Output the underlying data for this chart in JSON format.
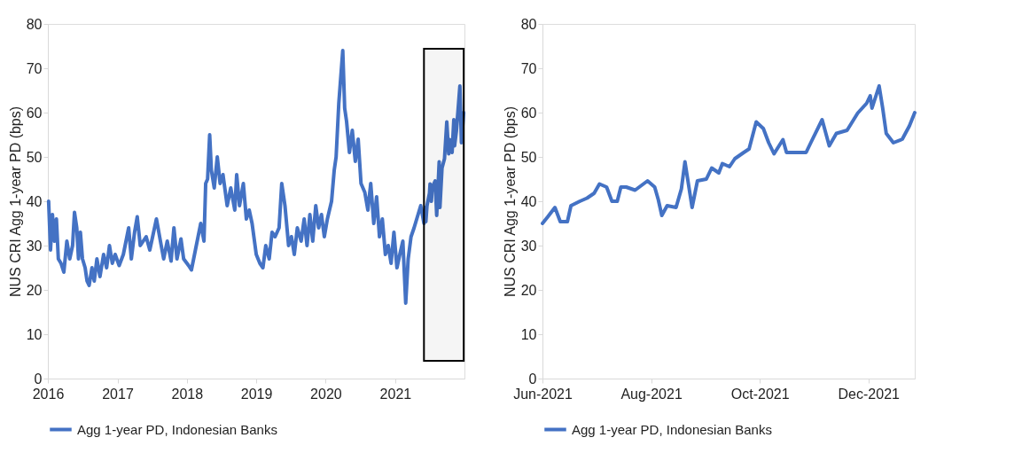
{
  "chart_data": [
    {
      "type": "line",
      "ylabel": "NUS CRI Agg 1-year PD (bps)",
      "x": [
        "2016-01-05",
        "2016-01-15",
        "2016-01-25",
        "2016-02-05",
        "2016-02-15",
        "2016-02-25",
        "2016-03-10",
        "2016-03-25",
        "2016-04-10",
        "2016-04-25",
        "2016-05-10",
        "2016-05-20",
        "2016-06-01",
        "2016-06-10",
        "2016-06-20",
        "2016-07-01",
        "2016-07-15",
        "2016-07-25",
        "2016-08-05",
        "2016-08-20",
        "2016-09-01",
        "2016-09-15",
        "2016-10-01",
        "2016-10-20",
        "2016-11-05",
        "2016-11-20",
        "2016-12-05",
        "2016-12-20",
        "2017-01-10",
        "2017-02-01",
        "2017-03-01",
        "2017-03-15",
        "2017-04-01",
        "2017-04-15",
        "2017-05-01",
        "2017-06-01",
        "2017-06-20",
        "2017-07-10",
        "2017-07-25",
        "2017-08-15",
        "2017-09-01",
        "2017-09-20",
        "2017-10-10",
        "2017-10-25",
        "2017-11-10",
        "2017-12-01",
        "2017-12-15",
        "2018-01-10",
        "2018-01-25",
        "2018-02-15",
        "2018-03-01",
        "2018-03-15",
        "2018-04-01",
        "2018-04-10",
        "2018-04-20",
        "2018-05-01",
        "2018-05-10",
        "2018-05-25",
        "2018-06-10",
        "2018-06-25",
        "2018-07-10",
        "2018-08-01",
        "2018-08-20",
        "2018-09-10",
        "2018-09-20",
        "2018-10-05",
        "2018-10-25",
        "2018-11-10",
        "2018-11-25",
        "2018-12-10",
        "2019-01-01",
        "2019-01-20",
        "2019-02-05",
        "2019-02-20",
        "2019-03-10",
        "2019-03-25",
        "2019-04-10",
        "2019-05-01",
        "2019-05-15",
        "2019-06-01",
        "2019-06-20",
        "2019-07-05",
        "2019-07-20",
        "2019-08-05",
        "2019-08-25",
        "2019-09-10",
        "2019-09-25",
        "2019-10-10",
        "2019-10-25",
        "2019-11-10",
        "2019-11-25",
        "2019-12-10",
        "2019-12-25",
        "2020-01-10",
        "2020-02-01",
        "2020-02-15",
        "2020-02-25",
        "2020-03-10",
        "2020-03-31",
        "2020-04-10",
        "2020-04-20",
        "2020-05-05",
        "2020-05-20",
        "2020-06-05",
        "2020-06-20",
        "2020-07-05",
        "2020-07-25",
        "2020-08-10",
        "2020-08-25",
        "2020-09-10",
        "2020-09-25",
        "2020-10-10",
        "2020-10-25",
        "2020-11-10",
        "2020-11-25",
        "2020-12-10",
        "2020-12-25",
        "2021-01-10",
        "2021-01-25",
        "2021-02-10",
        "2021-02-25",
        "2021-03-10",
        "2021-03-25",
        "2021-04-10",
        "2021-05-01",
        "2021-05-15",
        "2021-06-01",
        "2021-06-08",
        "2021-06-11",
        "2021-06-17",
        "2021-06-30",
        "2021-07-03",
        "2021-07-10",
        "2021-07-15",
        "2021-07-30",
        "2021-08-07",
        "2021-08-20",
        "2021-08-24",
        "2021-09-04",
        "2021-09-17",
        "2021-09-29",
        "2021-10-09",
        "2021-10-14",
        "2021-10-27",
        "2021-11-05",
        "2021-11-09",
        "2021-11-19",
        "2021-11-30",
        "2021-12-07",
        "2021-12-15",
        "2021-12-27"
      ],
      "series": [
        {
          "name": "Agg 1-year PD, Indonesian Banks",
          "color": "#4472c4",
          "values": [
            40,
            29,
            37,
            31,
            36,
            27,
            26,
            24,
            31,
            27,
            30,
            37.5,
            34,
            27,
            33,
            27,
            25,
            22,
            21,
            25,
            22,
            27,
            23,
            28,
            25,
            30,
            26,
            28,
            25.5,
            28,
            34,
            27,
            33,
            36.5,
            30,
            32,
            29,
            33,
            36,
            31,
            27,
            31,
            26.5,
            34,
            27,
            31.5,
            27,
            25.5,
            24.5,
            29,
            32,
            35,
            31,
            44,
            45,
            55,
            47,
            43,
            50,
            44,
            46,
            39,
            43,
            38,
            46,
            39,
            44,
            36,
            38,
            35,
            28,
            26,
            25,
            30,
            27,
            33,
            32,
            34,
            44,
            39,
            30,
            32,
            28,
            34,
            31,
            36,
            30,
            37,
            31,
            39,
            34,
            37,
            32,
            36,
            40,
            47,
            50,
            62,
            74,
            61,
            58,
            51,
            56,
            49,
            54,
            44,
            42,
            38,
            44,
            35,
            41,
            32,
            36,
            28,
            30,
            26,
            33,
            25,
            28,
            31,
            17,
            27,
            32,
            34,
            37,
            39,
            35,
            38.6,
            35.4,
            39,
            41.8,
            43.9,
            40,
            43.2,
            44.6,
            36.8,
            48.9,
            38.6,
            47.5,
            49.6,
            57.9,
            50.7,
            53.9,
            51,
            58.4,
            52.5,
            56,
            62.1,
            66,
            53.2,
            60
          ]
        }
      ],
      "xlim": [
        "2016-01-01",
        "2021-12-31"
      ],
      "xticks": [
        {
          "value": "2016-01-01",
          "label": "2016"
        },
        {
          "value": "2017-01-01",
          "label": "2017"
        },
        {
          "value": "2018-01-01",
          "label": "2018"
        },
        {
          "value": "2019-01-01",
          "label": "2019"
        },
        {
          "value": "2020-01-01",
          "label": "2020"
        },
        {
          "value": "2021-01-01",
          "label": "2021"
        }
      ],
      "ylim": [
        0,
        80
      ],
      "yticks": [
        0,
        10,
        20,
        30,
        40,
        50,
        60,
        70,
        80
      ],
      "bands": [
        {
          "axis": "x",
          "from": "2021-06-01",
          "to": "2021-12-27"
        }
      ],
      "grid": false,
      "legend": "bottom",
      "line_style": "solid",
      "marker": "none"
    },
    {
      "type": "line",
      "ylabel": "NUS CRI Agg 1-year PD (bps)",
      "x": [
        "2021-06-01",
        "2021-06-04",
        "2021-06-08",
        "2021-06-11",
        "2021-06-15",
        "2021-06-17",
        "2021-06-22",
        "2021-06-26",
        "2021-06-30",
        "2021-07-03",
        "2021-07-07",
        "2021-07-10",
        "2021-07-13",
        "2021-07-15",
        "2021-07-18",
        "2021-07-23",
        "2021-07-30",
        "2021-08-03",
        "2021-08-05",
        "2021-08-07",
        "2021-08-10",
        "2021-08-15",
        "2021-08-18",
        "2021-08-20",
        "2021-08-24",
        "2021-08-27",
        "2021-09-01",
        "2021-09-04",
        "2021-09-08",
        "2021-09-10",
        "2021-09-14",
        "2021-09-17",
        "2021-09-22",
        "2021-09-25",
        "2021-09-29",
        "2021-10-03",
        "2021-10-06",
        "2021-10-09",
        "2021-10-14",
        "2021-10-16",
        "2021-10-27",
        "2021-10-30",
        "2021-11-05",
        "2021-11-09",
        "2021-11-13",
        "2021-11-19",
        "2021-11-25",
        "2021-11-30",
        "2021-12-02",
        "2021-12-03",
        "2021-12-07",
        "2021-12-09",
        "2021-12-11",
        "2021-12-15",
        "2021-12-20",
        "2021-12-24",
        "2021-12-27"
      ],
      "series": [
        {
          "name": "Agg 1-year PD, Indonesian Banks",
          "color": "#4472c4",
          "values": [
            35,
            36.5,
            38.6,
            35.4,
            35.4,
            39,
            40,
            40.7,
            41.8,
            43.9,
            43.2,
            40,
            40,
            43.2,
            43.2,
            42.5,
            44.6,
            43.2,
            40.4,
            36.8,
            39,
            38.6,
            42.8,
            48.9,
            38.6,
            44.6,
            45,
            47.5,
            46.4,
            48.5,
            47.8,
            49.6,
            51,
            51.8,
            57.9,
            56.4,
            53.2,
            50.7,
            53.9,
            51,
            51,
            53.5,
            58.4,
            52.5,
            55.3,
            56,
            59.9,
            62.1,
            63.8,
            61,
            66,
            61,
            55.3,
            53.2,
            54,
            57,
            60
          ]
        }
      ],
      "xlim": [
        "2021-06-01",
        "2021-12-27"
      ],
      "xticks": [
        {
          "value": "2021-06-01",
          "label": "Jun-2021"
        },
        {
          "value": "2021-08-01",
          "label": "Aug-2021"
        },
        {
          "value": "2021-10-01",
          "label": "Oct-2021"
        },
        {
          "value": "2021-12-01",
          "label": "Dec-2021"
        }
      ],
      "ylim": [
        0,
        80
      ],
      "yticks": [
        0,
        10,
        20,
        30,
        40,
        50,
        60,
        70,
        80
      ],
      "grid": false,
      "legend": "bottom",
      "line_style": "solid",
      "marker": "none"
    }
  ]
}
